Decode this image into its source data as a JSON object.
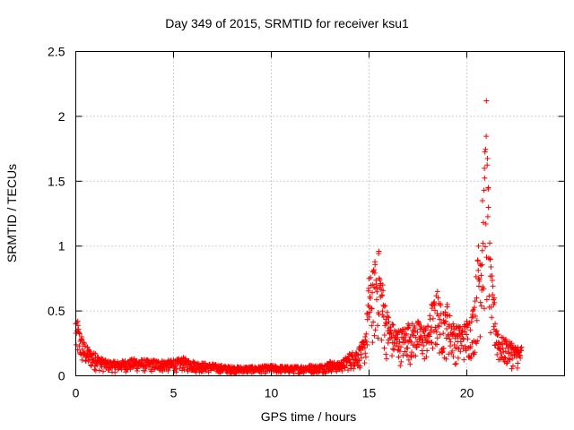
{
  "chart_data": {
    "type": "scatter",
    "title": "Day 349 of 2015, SRMTID for receiver ksu1",
    "xlabel": "GPS time / hours",
    "ylabel": "SRMTID / TECUs",
    "xlim": [
      0,
      25
    ],
    "ylim": [
      0,
      2.5
    ],
    "x_ticks": [
      0,
      5,
      10,
      15,
      20
    ],
    "x_tick_labels": [
      "0",
      "5",
      "10",
      "15",
      "20"
    ],
    "y_ticks": [
      0,
      0.5,
      1,
      1.5,
      2,
      2.5
    ],
    "y_tick_labels": [
      "0",
      "0.5",
      "1",
      "1.5",
      "2",
      "2.5"
    ],
    "grid": true,
    "marker": "+",
    "series": [
      {
        "name": "ksu1",
        "color": "#ff0000",
        "envelope": {
          "x": [
            0,
            0.1,
            0.3,
            0.6,
            1,
            1.5,
            2,
            3,
            4,
            5,
            5.5,
            6,
            7,
            8,
            9,
            10,
            11,
            12,
            12.5,
            13,
            13.5,
            14,
            14.5,
            14.8,
            15,
            15.2,
            15.3,
            15.5,
            15.7,
            16,
            16.5,
            17,
            17.5,
            18,
            18.2,
            18.5,
            18.8,
            19,
            19.3,
            19.6,
            20,
            20.3,
            20.6,
            20.8,
            20.9,
            21,
            21.1,
            21.2,
            21.4,
            21.6,
            22,
            22.3,
            22.6,
            22.8
          ],
          "y": [
            0.4,
            0.42,
            0.3,
            0.22,
            0.17,
            0.12,
            0.11,
            0.13,
            0.12,
            0.12,
            0.14,
            0.11,
            0.09,
            0.07,
            0.07,
            0.08,
            0.07,
            0.08,
            0.08,
            0.11,
            0.1,
            0.17,
            0.22,
            0.3,
            0.75,
            0.8,
            0.88,
            0.96,
            0.7,
            0.45,
            0.35,
            0.4,
            0.42,
            0.38,
            0.55,
            0.65,
            0.48,
            0.55,
            0.4,
            0.38,
            0.42,
            0.5,
            1.0,
            1.35,
            1.6,
            2.12,
            1.45,
            0.9,
            0.6,
            0.32,
            0.28,
            0.25,
            0.22,
            0.22
          ]
        }
      }
    ]
  }
}
